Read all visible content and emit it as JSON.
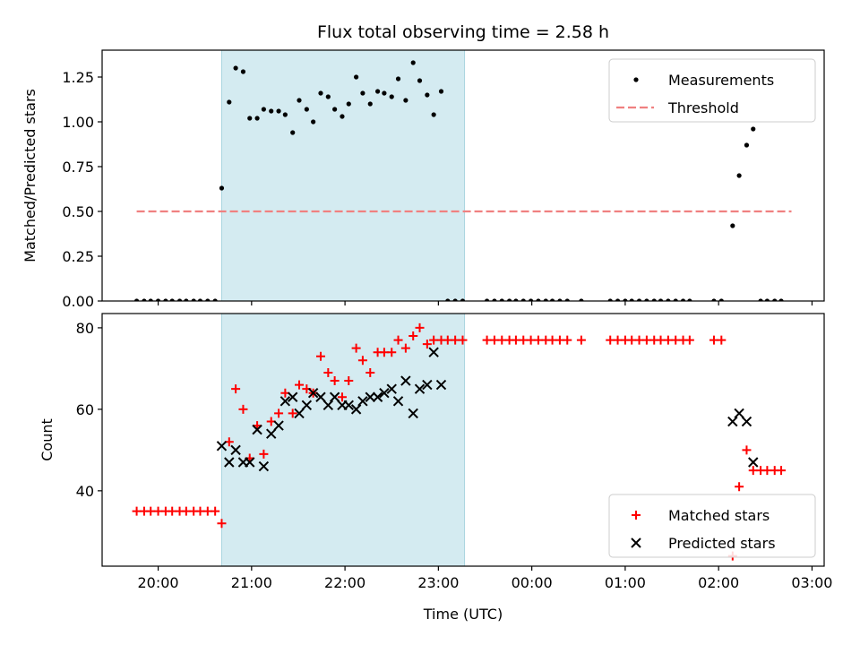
{
  "chart_data": {
    "type": "scatter",
    "title": "Flux total observing time = 2.58 h",
    "xlabel": "Time (UTC)",
    "x_ticks": [
      "20:00",
      "21:00",
      "22:00",
      "23:00",
      "00:00",
      "01:00",
      "02:00",
      "03:00"
    ],
    "x_tick_hours": [
      20,
      21,
      22,
      23,
      24,
      25,
      26,
      27
    ],
    "xlim_hours": [
      19.4,
      27.13
    ],
    "shaded_region_hours": [
      20.68,
      23.28
    ],
    "shade_color": "#d4ebf1",
    "top_panel": {
      "ylabel": "Matched/Predicted stars",
      "ylim": [
        0,
        1.4
      ],
      "y_ticks": [
        "0.00",
        "0.25",
        "0.50",
        "0.75",
        "1.00",
        "1.25"
      ],
      "y_tick_values": [
        0,
        0.25,
        0.5,
        0.75,
        1.0,
        1.25
      ],
      "legend_position": "upper right",
      "series": [
        {
          "name": "Measurements",
          "marker": "dot",
          "color": "#000000",
          "points": [
            [
              19.77,
              0
            ],
            [
              19.85,
              0
            ],
            [
              19.92,
              0
            ],
            [
              20.0,
              0
            ],
            [
              20.08,
              0
            ],
            [
              20.15,
              0
            ],
            [
              20.23,
              0
            ],
            [
              20.3,
              0
            ],
            [
              20.38,
              0
            ],
            [
              20.45,
              0
            ],
            [
              20.53,
              0
            ],
            [
              20.61,
              0
            ],
            [
              20.68,
              0.63
            ],
            [
              20.76,
              1.11
            ],
            [
              20.83,
              1.3
            ],
            [
              20.91,
              1.28
            ],
            [
              20.98,
              1.02
            ],
            [
              21.06,
              1.02
            ],
            [
              21.13,
              1.07
            ],
            [
              21.21,
              1.06
            ],
            [
              21.29,
              1.06
            ],
            [
              21.36,
              1.04
            ],
            [
              21.44,
              0.94
            ],
            [
              21.51,
              1.12
            ],
            [
              21.59,
              1.07
            ],
            [
              21.66,
              1.0
            ],
            [
              21.74,
              1.16
            ],
            [
              21.82,
              1.14
            ],
            [
              21.89,
              1.07
            ],
            [
              21.97,
              1.03
            ],
            [
              22.04,
              1.1
            ],
            [
              22.12,
              1.25
            ],
            [
              22.19,
              1.16
            ],
            [
              22.27,
              1.1
            ],
            [
              22.35,
              1.17
            ],
            [
              22.42,
              1.16
            ],
            [
              22.5,
              1.14
            ],
            [
              22.57,
              1.24
            ],
            [
              22.65,
              1.12
            ],
            [
              22.73,
              1.33
            ],
            [
              22.8,
              1.23
            ],
            [
              22.88,
              1.15
            ],
            [
              22.95,
              1.04
            ],
            [
              23.03,
              1.17
            ],
            [
              23.1,
              0
            ],
            [
              23.18,
              0
            ],
            [
              23.26,
              0
            ],
            [
              23.52,
              0
            ],
            [
              23.6,
              0
            ],
            [
              23.68,
              0
            ],
            [
              23.76,
              0
            ],
            [
              23.83,
              0
            ],
            [
              23.91,
              0
            ],
            [
              23.99,
              0
            ],
            [
              24.07,
              0
            ],
            [
              24.15,
              0
            ],
            [
              24.22,
              0
            ],
            [
              24.3,
              0
            ],
            [
              24.38,
              0
            ],
            [
              24.53,
              0
            ],
            [
              24.84,
              0
            ],
            [
              24.92,
              0
            ],
            [
              25.0,
              0
            ],
            [
              25.07,
              0
            ],
            [
              25.15,
              0
            ],
            [
              25.23,
              0
            ],
            [
              25.31,
              0
            ],
            [
              25.38,
              0
            ],
            [
              25.46,
              0
            ],
            [
              25.54,
              0
            ],
            [
              25.62,
              0
            ],
            [
              25.69,
              0
            ],
            [
              25.95,
              0
            ],
            [
              26.03,
              0
            ],
            [
              26.15,
              0.42
            ],
            [
              26.22,
              0.7
            ],
            [
              26.3,
              0.87
            ],
            [
              26.37,
              0.96
            ],
            [
              26.45,
              0
            ],
            [
              26.52,
              0
            ],
            [
              26.6,
              0
            ],
            [
              26.67,
              0
            ]
          ]
        },
        {
          "name": "Threshold",
          "marker": "dashed-line",
          "color": "#f08080",
          "x_range": [
            19.77,
            26.78
          ],
          "value": 0.5
        }
      ]
    },
    "bottom_panel": {
      "ylabel": "Count",
      "ylim": [
        21.5,
        83.5
      ],
      "y_ticks": [
        "40",
        "60",
        "80"
      ],
      "y_tick_values": [
        40,
        60,
        80
      ],
      "legend_position": "lower right",
      "series": [
        {
          "name": "Matched stars",
          "marker": "plus",
          "color": "#ff0000",
          "points": [
            [
              19.77,
              35
            ],
            [
              19.85,
              35
            ],
            [
              19.92,
              35
            ],
            [
              20.0,
              35
            ],
            [
              20.08,
              35
            ],
            [
              20.15,
              35
            ],
            [
              20.23,
              35
            ],
            [
              20.3,
              35
            ],
            [
              20.38,
              35
            ],
            [
              20.45,
              35
            ],
            [
              20.53,
              35
            ],
            [
              20.61,
              35
            ],
            [
              20.68,
              32
            ],
            [
              20.76,
              52
            ],
            [
              20.83,
              65
            ],
            [
              20.91,
              60
            ],
            [
              20.98,
              48
            ],
            [
              21.06,
              56
            ],
            [
              21.13,
              49
            ],
            [
              21.21,
              57
            ],
            [
              21.29,
              59
            ],
            [
              21.36,
              64
            ],
            [
              21.44,
              59
            ],
            [
              21.51,
              66
            ],
            [
              21.59,
              65
            ],
            [
              21.66,
              64
            ],
            [
              21.74,
              73
            ],
            [
              21.82,
              69
            ],
            [
              21.89,
              67
            ],
            [
              21.97,
              63
            ],
            [
              22.04,
              67
            ],
            [
              22.12,
              75
            ],
            [
              22.19,
              72
            ],
            [
              22.27,
              69
            ],
            [
              22.35,
              74
            ],
            [
              22.42,
              74
            ],
            [
              22.5,
              74
            ],
            [
              22.57,
              77
            ],
            [
              22.65,
              75
            ],
            [
              22.73,
              78
            ],
            [
              22.8,
              80
            ],
            [
              22.88,
              76
            ],
            [
              22.95,
              77
            ],
            [
              23.03,
              77
            ],
            [
              23.1,
              77
            ],
            [
              23.18,
              77
            ],
            [
              23.26,
              77
            ],
            [
              23.52,
              77
            ],
            [
              23.6,
              77
            ],
            [
              23.68,
              77
            ],
            [
              23.76,
              77
            ],
            [
              23.83,
              77
            ],
            [
              23.91,
              77
            ],
            [
              23.99,
              77
            ],
            [
              24.07,
              77
            ],
            [
              24.15,
              77
            ],
            [
              24.22,
              77
            ],
            [
              24.3,
              77
            ],
            [
              24.38,
              77
            ],
            [
              24.53,
              77
            ],
            [
              24.84,
              77
            ],
            [
              24.92,
              77
            ],
            [
              25.0,
              77
            ],
            [
              25.07,
              77
            ],
            [
              25.15,
              77
            ],
            [
              25.23,
              77
            ],
            [
              25.31,
              77
            ],
            [
              25.38,
              77
            ],
            [
              25.46,
              77
            ],
            [
              25.54,
              77
            ],
            [
              25.62,
              77
            ],
            [
              25.69,
              77
            ],
            [
              25.95,
              77
            ],
            [
              26.03,
              77
            ],
            [
              26.15,
              24
            ],
            [
              26.22,
              41
            ],
            [
              26.3,
              50
            ],
            [
              26.37,
              45
            ],
            [
              26.45,
              45
            ],
            [
              26.52,
              45
            ],
            [
              26.6,
              45
            ],
            [
              26.67,
              45
            ]
          ]
        },
        {
          "name": "Predicted stars",
          "marker": "x",
          "color": "#000000",
          "points": [
            [
              20.68,
              51
            ],
            [
              20.76,
              47
            ],
            [
              20.83,
              50
            ],
            [
              20.91,
              47
            ],
            [
              20.98,
              47
            ],
            [
              21.06,
              55
            ],
            [
              21.13,
              46
            ],
            [
              21.21,
              54
            ],
            [
              21.29,
              56
            ],
            [
              21.36,
              62
            ],
            [
              21.44,
              63
            ],
            [
              21.51,
              59
            ],
            [
              21.59,
              61
            ],
            [
              21.66,
              64
            ],
            [
              21.74,
              63
            ],
            [
              21.82,
              61
            ],
            [
              21.89,
              63
            ],
            [
              21.97,
              61
            ],
            [
              22.04,
              61
            ],
            [
              22.12,
              60
            ],
            [
              22.19,
              62
            ],
            [
              22.27,
              63
            ],
            [
              22.35,
              63
            ],
            [
              22.42,
              64
            ],
            [
              22.5,
              65
            ],
            [
              22.57,
              62
            ],
            [
              22.65,
              67
            ],
            [
              22.73,
              59
            ],
            [
              22.8,
              65
            ],
            [
              22.88,
              66
            ],
            [
              22.95,
              74
            ],
            [
              23.03,
              66
            ],
            [
              26.15,
              57
            ],
            [
              26.22,
              59
            ],
            [
              26.3,
              57
            ],
            [
              26.37,
              47
            ]
          ]
        }
      ]
    }
  }
}
